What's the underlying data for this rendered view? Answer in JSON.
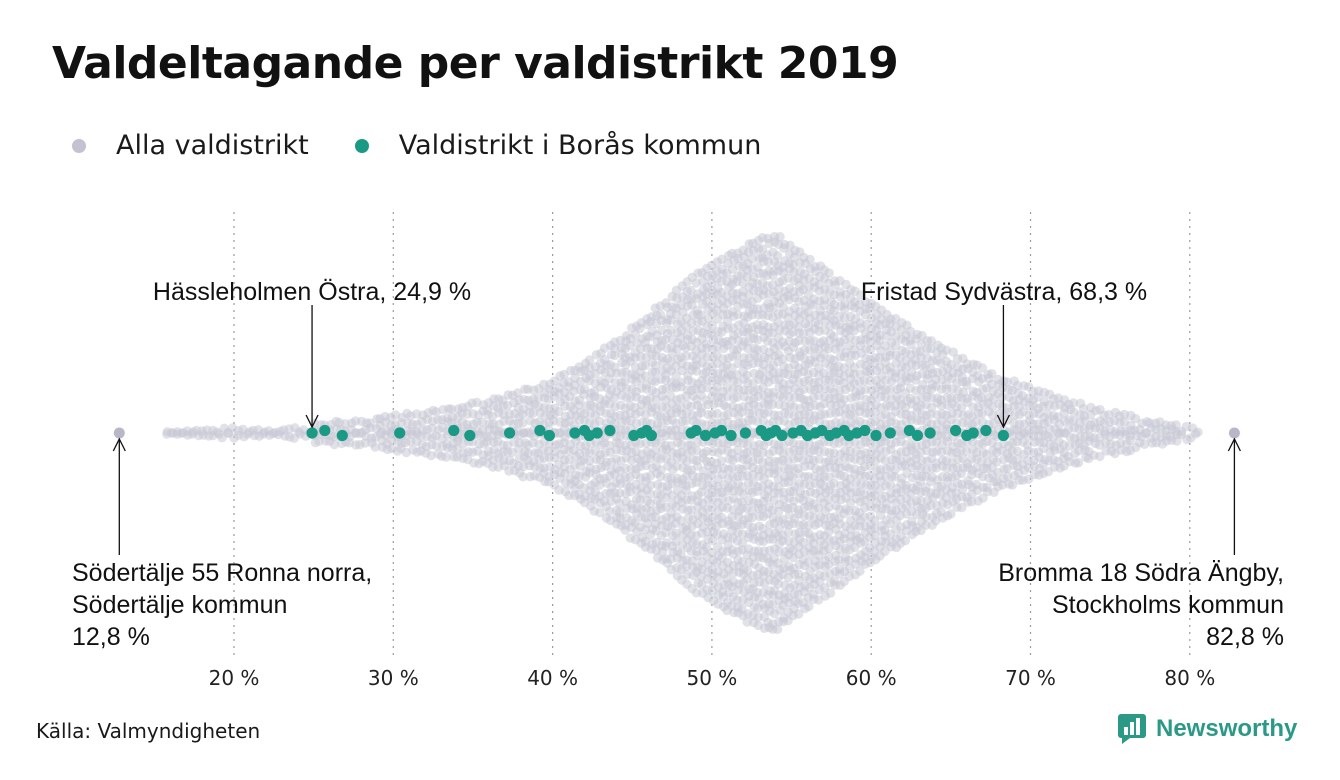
{
  "title": "Valdeltagande per valdistrikt 2019",
  "legend": {
    "all_label": "Alla valdistrikt",
    "boras_label": "Valdistrikt i Borås kommun"
  },
  "colors": {
    "all": "#c9c8d6",
    "boras": "#1a9985",
    "brand": "#2a9a86"
  },
  "source": "Källa: Valmyndigheten",
  "brand": {
    "name": "Newsworthy",
    "icon": "bar-chart-logo-icon"
  },
  "chart_data": {
    "type": "scatter",
    "subtype": "beeswarm",
    "title": "Valdeltagande per valdistrikt 2019",
    "xlabel": "",
    "ylabel": "",
    "xlim": [
      12,
      84
    ],
    "ticks": [
      20,
      30,
      40,
      50,
      60,
      70,
      80
    ],
    "tick_labels": [
      "20 %",
      "30 %",
      "40 %",
      "50 %",
      "60 %",
      "70 %",
      "80 %"
    ],
    "grid": "vertical dotted",
    "legend_position": "top-left",
    "series": [
      {
        "name": "Alla valdistrikt",
        "color": "#c9c8d6",
        "distribution_density": [
          {
            "x": 13,
            "d": 0.01
          },
          {
            "x": 16,
            "d": 0.02
          },
          {
            "x": 19,
            "d": 0.04
          },
          {
            "x": 22,
            "d": 0.05
          },
          {
            "x": 25,
            "d": 0.06
          },
          {
            "x": 28,
            "d": 0.09
          },
          {
            "x": 31,
            "d": 0.12
          },
          {
            "x": 34,
            "d": 0.15
          },
          {
            "x": 37,
            "d": 0.2
          },
          {
            "x": 40,
            "d": 0.28
          },
          {
            "x": 43,
            "d": 0.42
          },
          {
            "x": 46,
            "d": 0.6
          },
          {
            "x": 49,
            "d": 0.8
          },
          {
            "x": 51,
            "d": 0.9
          },
          {
            "x": 53,
            "d": 0.98
          },
          {
            "x": 54,
            "d": 1.0
          },
          {
            "x": 56,
            "d": 0.88
          },
          {
            "x": 59,
            "d": 0.72
          },
          {
            "x": 62,
            "d": 0.56
          },
          {
            "x": 65,
            "d": 0.42
          },
          {
            "x": 68,
            "d": 0.3
          },
          {
            "x": 71,
            "d": 0.22
          },
          {
            "x": 74,
            "d": 0.14
          },
          {
            "x": 77,
            "d": 0.09
          },
          {
            "x": 80,
            "d": 0.05
          },
          {
            "x": 83,
            "d": 0.01
          }
        ],
        "extremes": [
          12.8,
          82.8
        ]
      },
      {
        "name": "Valdistrikt i Borås kommun",
        "color": "#1a9985",
        "values": [
          24.9,
          25.7,
          26.8,
          30.4,
          33.8,
          34.8,
          37.3,
          39.2,
          39.8,
          41.4,
          42.0,
          42.3,
          42.8,
          43.6,
          45.1,
          45.6,
          45.9,
          46.2,
          48.7,
          49.0,
          49.6,
          50.2,
          50.6,
          51.2,
          52.1,
          53.1,
          53.4,
          53.7,
          54.0,
          54.4,
          55.1,
          55.6,
          56.0,
          56.5,
          56.9,
          57.4,
          57.8,
          58.3,
          58.6,
          59.1,
          59.6,
          60.3,
          61.2,
          62.4,
          62.9,
          63.7,
          65.3,
          66.0,
          66.4,
          67.2,
          68.3
        ]
      }
    ],
    "annotations": [
      {
        "lines": [
          "Hässleholmen Östra, 24,9 %"
        ],
        "value": 24.9
      },
      {
        "lines": [
          "Fristad Sydvästra, 68,3 %"
        ],
        "value": 68.3
      },
      {
        "lines": [
          "Södertälje 55 Ronna norra,",
          "Södertälje kommun",
          "12,8 %"
        ],
        "value": 12.8
      },
      {
        "lines": [
          "Bromma 18 Södra Ängby,",
          "Stockholms kommun",
          "82,8 %"
        ],
        "value": 82.8
      }
    ]
  }
}
